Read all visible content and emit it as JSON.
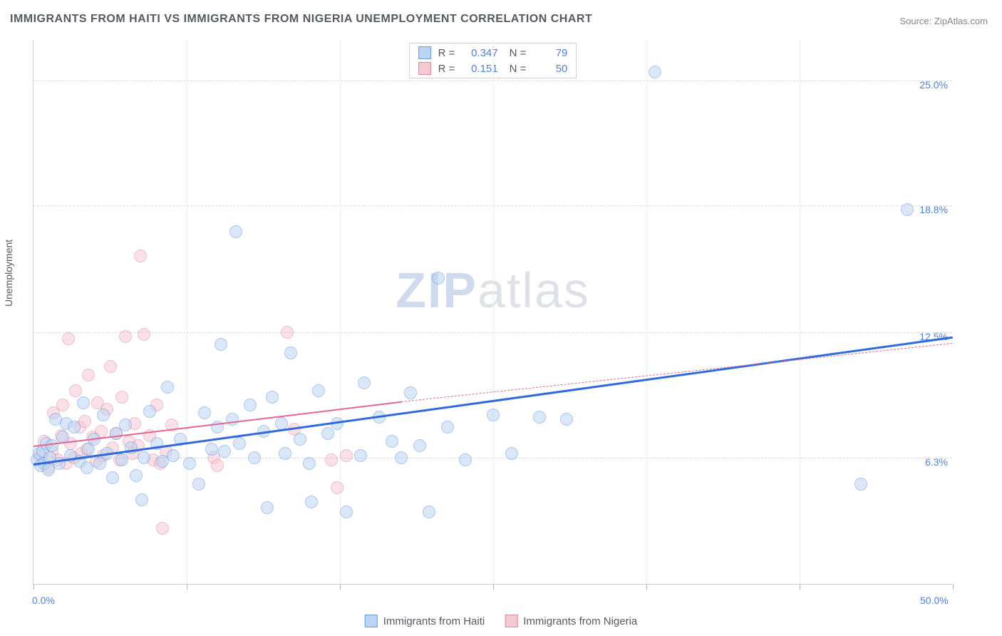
{
  "title": "IMMIGRANTS FROM HAITI VS IMMIGRANTS FROM NIGERIA UNEMPLOYMENT CORRELATION CHART",
  "source_label": "Source: ",
  "source_value": "ZipAtlas.com",
  "ylabel": "Unemployment",
  "watermark_a": "ZIP",
  "watermark_b": "atlas",
  "chart": {
    "type": "scatter",
    "xlim": [
      0,
      50
    ],
    "ylim": [
      0,
      27
    ],
    "x_ticks": [
      0,
      8.33,
      16.67,
      25,
      33.33,
      41.67,
      50
    ],
    "x_tick_labels": {
      "0": "0.0%",
      "50": "50.0%"
    },
    "y_ticks": [
      6.3,
      12.5,
      18.8,
      25.0
    ],
    "y_tick_labels": [
      "6.3%",
      "12.5%",
      "18.8%",
      "25.0%"
    ],
    "grid_color": "#d7dbe0",
    "axis_color": "#cfd3d9",
    "label_color": "#4f7fe0",
    "label_fontsize": 14,
    "background_color": "#ffffff",
    "marker_radius": 9,
    "marker_opacity": 0.55,
    "series": [
      {
        "id": "haiti",
        "legend_label": "Immigrants from Haiti",
        "fill": "#bcd4f3",
        "stroke": "#6a9ae0",
        "stats": {
          "R": "0.347",
          "N": "79"
        },
        "trend": {
          "x1": 0,
          "y1": 6.0,
          "x2": 50,
          "y2": 12.3,
          "color": "#2f69e0",
          "width": 3,
          "dash": false,
          "dash_extend": false
        },
        "points": [
          [
            0.2,
            6.2
          ],
          [
            0.3,
            6.5
          ],
          [
            0.4,
            5.9
          ],
          [
            0.5,
            6.6
          ],
          [
            0.6,
            6.0
          ],
          [
            0.7,
            7.0
          ],
          [
            0.8,
            5.7
          ],
          [
            0.9,
            6.3
          ],
          [
            1.0,
            6.9
          ],
          [
            1.2,
            8.2
          ],
          [
            1.4,
            6.0
          ],
          [
            1.6,
            7.3
          ],
          [
            1.8,
            8.0
          ],
          [
            2.0,
            6.4
          ],
          [
            2.2,
            7.8
          ],
          [
            2.5,
            6.1
          ],
          [
            2.7,
            9.0
          ],
          [
            2.9,
            5.8
          ],
          [
            3.0,
            6.7
          ],
          [
            3.3,
            7.2
          ],
          [
            3.6,
            6.0
          ],
          [
            3.8,
            8.4
          ],
          [
            4.0,
            6.5
          ],
          [
            4.3,
            5.3
          ],
          [
            4.5,
            7.5
          ],
          [
            4.8,
            6.2
          ],
          [
            5.0,
            7.9
          ],
          [
            5.3,
            6.8
          ],
          [
            5.6,
            5.4
          ],
          [
            5.9,
            4.2
          ],
          [
            6.0,
            6.3
          ],
          [
            6.3,
            8.6
          ],
          [
            6.7,
            7.0
          ],
          [
            7.0,
            6.1
          ],
          [
            7.3,
            9.8
          ],
          [
            7.6,
            6.4
          ],
          [
            8.0,
            7.2
          ],
          [
            8.5,
            6.0
          ],
          [
            9.0,
            5.0
          ],
          [
            9.3,
            8.5
          ],
          [
            9.7,
            6.7
          ],
          [
            10.0,
            7.8
          ],
          [
            10.2,
            11.9
          ],
          [
            10.4,
            6.6
          ],
          [
            10.8,
            8.2
          ],
          [
            11.0,
            17.5
          ],
          [
            11.2,
            7.0
          ],
          [
            11.8,
            8.9
          ],
          [
            12.0,
            6.3
          ],
          [
            12.5,
            7.6
          ],
          [
            12.7,
            3.8
          ],
          [
            13.0,
            9.3
          ],
          [
            13.5,
            8.0
          ],
          [
            13.7,
            6.5
          ],
          [
            14.0,
            11.5
          ],
          [
            14.5,
            7.2
          ],
          [
            15.0,
            6.0
          ],
          [
            15.1,
            4.1
          ],
          [
            15.5,
            9.6
          ],
          [
            16.0,
            7.5
          ],
          [
            16.5,
            8.0
          ],
          [
            17.0,
            3.6
          ],
          [
            17.8,
            6.4
          ],
          [
            18.0,
            10.0
          ],
          [
            18.8,
            8.3
          ],
          [
            19.5,
            7.1
          ],
          [
            20.0,
            6.3
          ],
          [
            20.5,
            9.5
          ],
          [
            21.0,
            6.9
          ],
          [
            21.5,
            3.6
          ],
          [
            22.0,
            15.2
          ],
          [
            22.5,
            7.8
          ],
          [
            23.5,
            6.2
          ],
          [
            25.0,
            8.4
          ],
          [
            26.0,
            6.5
          ],
          [
            27.5,
            8.3
          ],
          [
            29.0,
            8.2
          ],
          [
            33.8,
            25.4
          ],
          [
            45.0,
            5.0
          ],
          [
            47.5,
            18.6
          ]
        ]
      },
      {
        "id": "nigeria",
        "legend_label": "Immigrants from Nigeria",
        "fill": "#f6c8d4",
        "stroke": "#e08aa2",
        "stats": {
          "R": "0.151",
          "N": "50"
        },
        "trend": {
          "x1": 0,
          "y1": 6.9,
          "x2": 20,
          "y2": 9.1,
          "color": "#e36593",
          "width": 2.5,
          "dash": false,
          "dash_extend": true,
          "x2_ext": 50,
          "y2_ext": 12.0
        },
        "points": [
          [
            0.4,
            6.4
          ],
          [
            0.6,
            7.1
          ],
          [
            0.8,
            5.8
          ],
          [
            1.0,
            6.6
          ],
          [
            1.1,
            8.5
          ],
          [
            1.3,
            6.2
          ],
          [
            1.5,
            7.4
          ],
          [
            1.6,
            8.9
          ],
          [
            1.8,
            6.0
          ],
          [
            1.9,
            12.2
          ],
          [
            2.0,
            7.0
          ],
          [
            2.2,
            6.3
          ],
          [
            2.3,
            9.6
          ],
          [
            2.5,
            7.8
          ],
          [
            2.6,
            6.5
          ],
          [
            2.8,
            8.1
          ],
          [
            2.9,
            6.7
          ],
          [
            3.0,
            10.4
          ],
          [
            3.2,
            7.3
          ],
          [
            3.4,
            6.1
          ],
          [
            3.5,
            9.0
          ],
          [
            3.7,
            7.6
          ],
          [
            3.8,
            6.4
          ],
          [
            4.0,
            8.7
          ],
          [
            4.2,
            10.8
          ],
          [
            4.3,
            6.8
          ],
          [
            4.5,
            7.5
          ],
          [
            4.7,
            6.2
          ],
          [
            4.8,
            9.3
          ],
          [
            5.0,
            12.3
          ],
          [
            5.2,
            7.1
          ],
          [
            5.4,
            6.5
          ],
          [
            5.5,
            8.0
          ],
          [
            5.7,
            6.9
          ],
          [
            5.8,
            16.3
          ],
          [
            6.0,
            12.4
          ],
          [
            6.3,
            7.4
          ],
          [
            6.5,
            6.2
          ],
          [
            6.7,
            8.9
          ],
          [
            6.9,
            6.0
          ],
          [
            7.0,
            2.8
          ],
          [
            7.2,
            6.6
          ],
          [
            7.5,
            7.9
          ],
          [
            9.8,
            6.3
          ],
          [
            10.0,
            5.9
          ],
          [
            13.8,
            12.5
          ],
          [
            14.2,
            7.7
          ],
          [
            16.2,
            6.2
          ],
          [
            16.5,
            4.8
          ],
          [
            17.0,
            6.4
          ]
        ]
      }
    ]
  },
  "stats_box": {
    "r_label": "R =",
    "n_label": "N ="
  }
}
